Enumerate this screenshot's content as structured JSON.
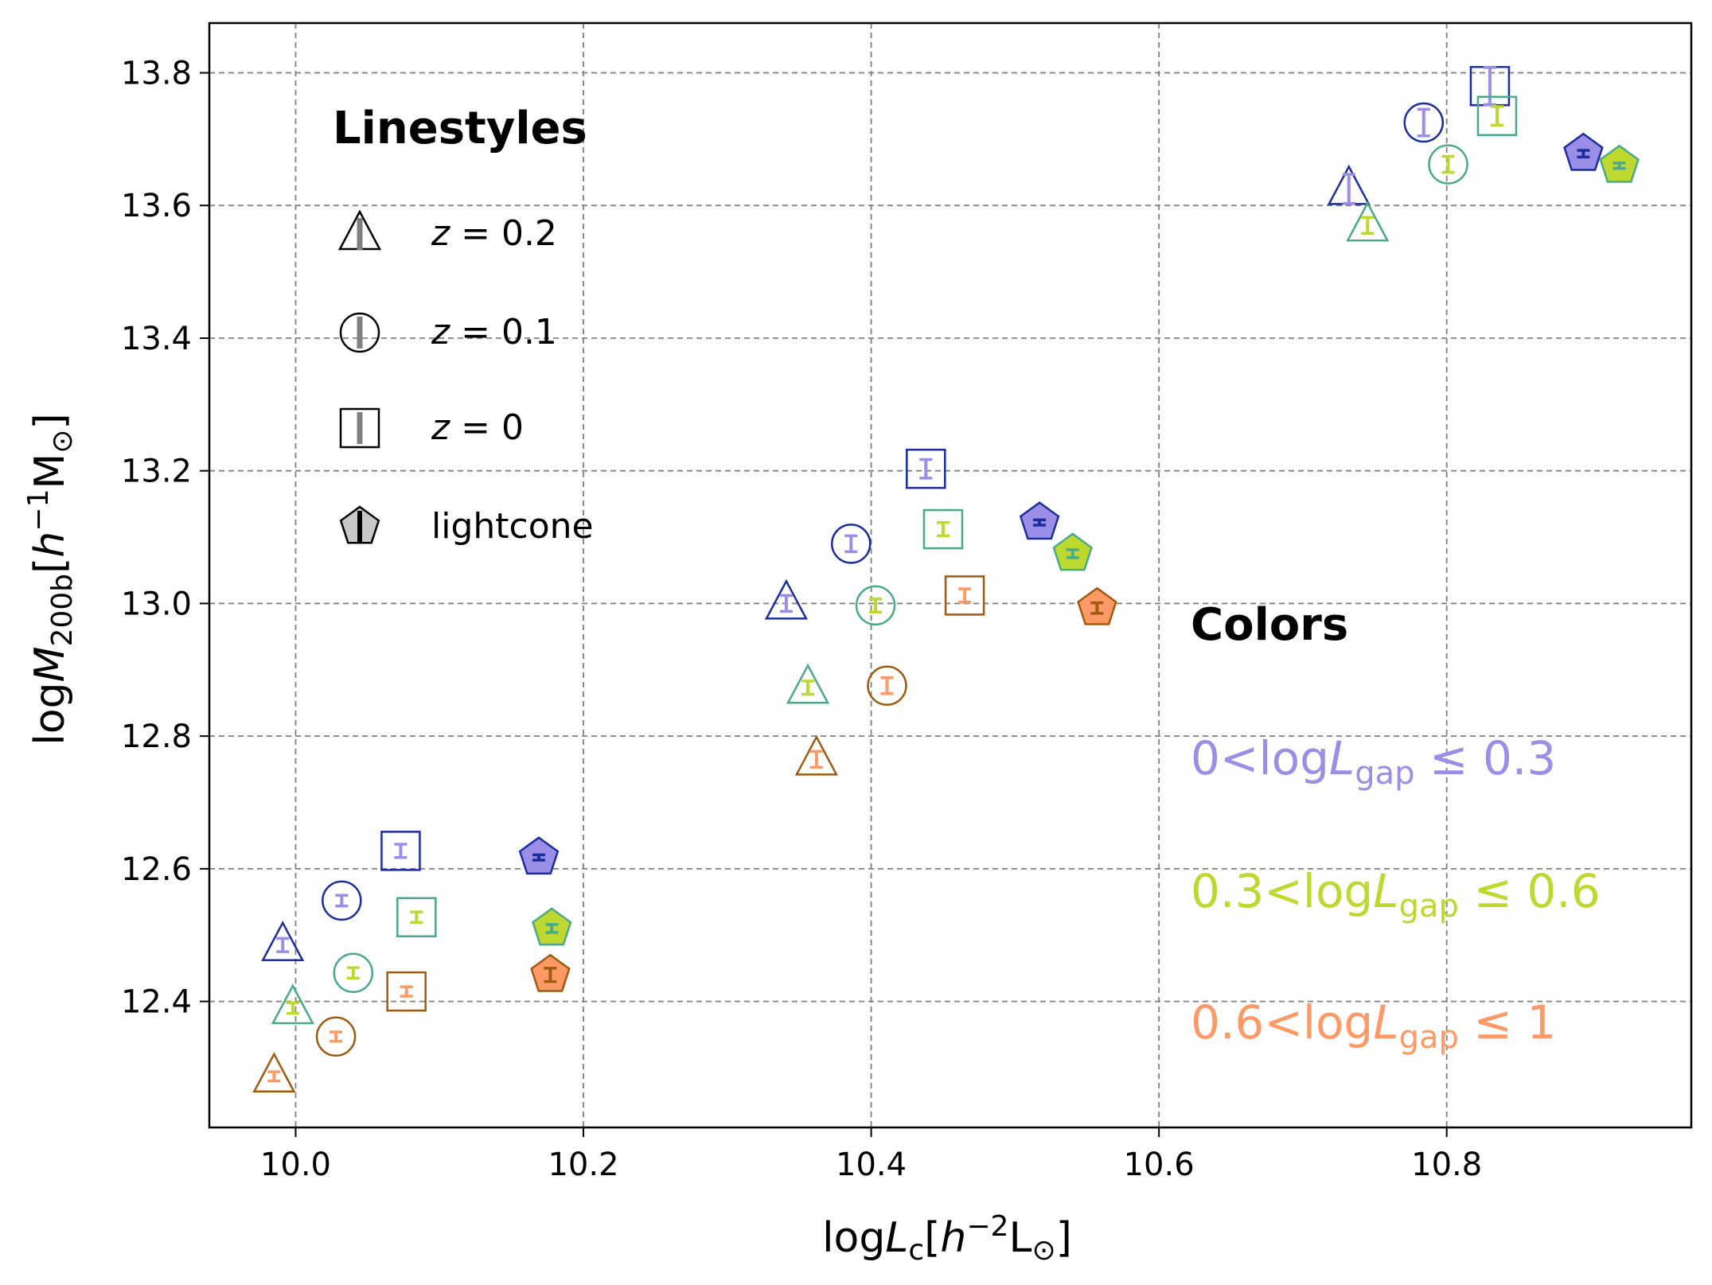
{
  "chart_data": {
    "type": "scatter",
    "xlabel": "logLc[h^-2 L⊙]",
    "ylabel": "logM200b[h^-1 M⊙]",
    "xlim": [
      9.94,
      10.97
    ],
    "ylim": [
      12.21,
      13.875
    ],
    "xticks": [
      10.0,
      10.2,
      10.4,
      10.6,
      10.8
    ],
    "xtick_labels": [
      "10.0",
      "10.2",
      "10.4",
      "10.6",
      "10.8"
    ],
    "yticks": [
      12.4,
      12.6,
      12.8,
      13.0,
      13.2,
      13.4,
      13.6,
      13.8
    ],
    "ytick_labels": [
      "12.4",
      "12.6",
      "12.8",
      "13.0",
      "13.2",
      "13.4",
      "13.6",
      "13.8"
    ],
    "grid": true,
    "colors": {
      "gap1_fill": "#9b8ee6",
      "gap2_fill": "#bfd830",
      "gap3_fill": "#ff9966",
      "gap1_edge": "#1a2e9e",
      "gap2_edge": "#4aaa88",
      "gap3_edge": "#a05a10"
    },
    "legend_linestyles": {
      "title": "Linestyles",
      "entries": [
        {
          "marker": "triangle",
          "label_var": "z",
          "label_eq": " = ",
          "label_val": "0.2"
        },
        {
          "marker": "circle",
          "label_var": "z",
          "label_eq": " = ",
          "label_val": "0.1"
        },
        {
          "marker": "square",
          "label_var": "z",
          "label_eq": " = ",
          "label_val": "0"
        },
        {
          "marker": "pentagon",
          "label_var": "",
          "label_eq": "",
          "label_val": "lightcone"
        }
      ]
    },
    "legend_colors": {
      "title": "Colors",
      "entries": [
        {
          "group": "gap1",
          "left": "0<log",
          "var": "L",
          "sub": "gap",
          "right": " ≤ 0.3"
        },
        {
          "group": "gap2",
          "left": "0.3<log",
          "var": "L",
          "sub": "gap",
          "right": " ≤ 0.6"
        },
        {
          "group": "gap3",
          "left": "0.6<log",
          "var": "L",
          "sub": "gap",
          "right": " ≤ 1"
        }
      ]
    },
    "series": [
      {
        "group": "gap1",
        "marker": "triangle",
        "x": [
          9.991,
          10.341,
          10.732
        ],
        "y": [
          12.485,
          13.0,
          13.625
        ],
        "err": [
          0.01,
          0.012,
          0.022
        ]
      },
      {
        "group": "gap2",
        "marker": "triangle",
        "x": [
          9.998,
          10.356,
          10.745
        ],
        "y": [
          12.39,
          12.873,
          13.57
        ],
        "err": [
          0.008,
          0.01,
          0.012
        ]
      },
      {
        "group": "gap3",
        "marker": "triangle",
        "x": [
          9.985,
          10.362
        ],
        "y": [
          12.287,
          12.765
        ],
        "err": [
          0.007,
          0.012
        ]
      },
      {
        "group": "gap1",
        "marker": "circle",
        "x": [
          10.032,
          10.386,
          10.784
        ],
        "y": [
          12.552,
          13.09,
          13.725
        ],
        "err": [
          0.008,
          0.012,
          0.02
        ]
      },
      {
        "group": "gap2",
        "marker": "circle",
        "x": [
          10.04,
          10.403,
          10.801
        ],
        "y": [
          12.443,
          12.997,
          13.662
        ],
        "err": [
          0.008,
          0.01,
          0.012
        ]
      },
      {
        "group": "gap3",
        "marker": "circle",
        "x": [
          10.028,
          10.411
        ],
        "y": [
          12.347,
          12.876
        ],
        "err": [
          0.007,
          0.012
        ]
      },
      {
        "group": "gap1",
        "marker": "square",
        "x": [
          10.073,
          10.438,
          10.83
        ],
        "y": [
          12.627,
          13.203,
          13.78
        ],
        "err": [
          0.01,
          0.014,
          0.028
        ]
      },
      {
        "group": "gap2",
        "marker": "square",
        "x": [
          10.084,
          10.45,
          10.835
        ],
        "y": [
          12.527,
          13.112,
          13.735
        ],
        "err": [
          0.008,
          0.01,
          0.014
        ]
      },
      {
        "group": "gap3",
        "marker": "square",
        "x": [
          10.077,
          10.465
        ],
        "y": [
          12.415,
          13.012
        ],
        "err": [
          0.007,
          0.01
        ]
      },
      {
        "group": "gap1",
        "marker": "pentagon",
        "x": [
          10.169,
          10.517,
          10.895
        ],
        "y": [
          12.617,
          13.122,
          13.678
        ],
        "err": [
          0.004,
          0.004,
          0.005
        ]
      },
      {
        "group": "gap2",
        "marker": "pentagon",
        "x": [
          10.178,
          10.54,
          10.92
        ],
        "y": [
          12.51,
          13.075,
          13.66
        ],
        "err": [
          0.006,
          0.006,
          0.004
        ]
      },
      {
        "group": "gap3",
        "marker": "pentagon",
        "x": [
          10.177,
          10.557
        ],
        "y": [
          12.44,
          12.993
        ],
        "err": [
          0.01,
          0.008
        ]
      }
    ]
  }
}
